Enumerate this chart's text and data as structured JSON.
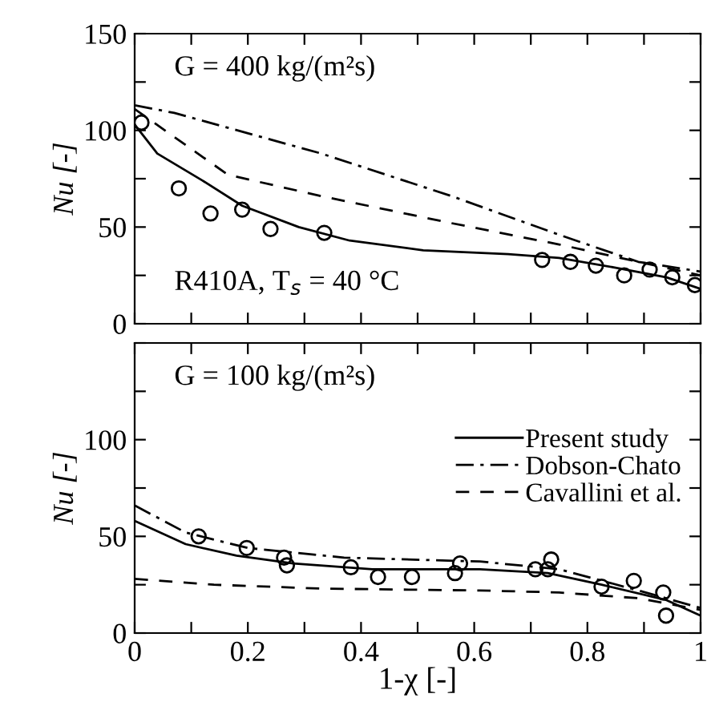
{
  "chart_data": [
    {
      "type": "line",
      "ylabel": "Nu [-]",
      "annotations": [
        "G = 400 kg/(m²s)",
        "R410A, T$_{s}$ = 40 °C"
      ],
      "xlim": [
        0,
        1
      ],
      "xticks": [
        0,
        {
          "value": 0.1,
          "label": null
        },
        0.2,
        {
          "value": 0.3,
          "label": null
        },
        0.4,
        {
          "value": 0.5,
          "label": null
        },
        0.6,
        {
          "value": 0.7,
          "label": null
        },
        0.8,
        {
          "value": 0.9,
          "label": null
        },
        1
      ],
      "ylim": [
        0,
        150
      ],
      "yticks": [
        0,
        {
          "value": 25,
          "label": null
        },
        50,
        {
          "value": 75,
          "label": null
        },
        100,
        {
          "value": 125,
          "label": null
        },
        150
      ],
      "tick_labels": "y",
      "grid": false,
      "legend": false,
      "series": [
        {
          "type": "scatter",
          "marker": "circle",
          "color": "#000000",
          "x": [
            0.012,
            0.078,
            0.134,
            0.19,
            0.24,
            0.335,
            0.72,
            0.77,
            0.815,
            0.865,
            0.91,
            0.95,
            0.99
          ],
          "values": [
            104,
            70,
            57,
            59,
            49,
            47,
            33,
            32,
            30,
            25,
            28,
            24,
            20
          ]
        },
        {
          "line_style": "solid",
          "color": "#000000",
          "x": [
            0,
            0.04,
            0.12,
            0.19,
            0.29,
            0.38,
            0.51,
            0.66,
            0.75,
            0.85,
            0.94,
            1
          ],
          "values": [
            103,
            88,
            74,
            61,
            50,
            43,
            38,
            36,
            34,
            29,
            24,
            18
          ]
        },
        {
          "line_style": "dashdot",
          "color": "#000000",
          "x": [
            0,
            0.07,
            0.33,
            0.56,
            0.75,
            0.89,
            1
          ],
          "values": [
            113,
            109,
            88,
            66,
            46,
            32,
            27
          ]
        },
        {
          "line_style": "dashed",
          "color": "#000000",
          "x": [
            0,
            0.165,
            0.33,
            0.56,
            0.75,
            0.89,
            1
          ],
          "values": [
            111,
            77,
            66,
            52,
            41,
            32,
            25
          ]
        }
      ]
    },
    {
      "type": "line",
      "xlabel": "1-χ [-]",
      "ylabel": "Nu [-]",
      "annotations": [
        "G = 100 kg/(m²s)"
      ],
      "xlim": [
        0,
        1
      ],
      "xticks": [
        0,
        {
          "value": 0.1,
          "label": null
        },
        0.2,
        {
          "value": 0.3,
          "label": null
        },
        0.4,
        {
          "value": 0.5,
          "label": null
        },
        0.6,
        {
          "value": 0.7,
          "label": null
        },
        0.8,
        {
          "value": 0.9,
          "label": null
        },
        1
      ],
      "ylim": [
        0,
        150
      ],
      "yticks": [
        0,
        {
          "value": 25,
          "label": null
        },
        50,
        {
          "value": 75,
          "label": null
        },
        100,
        {
          "value": 125,
          "label": null
        },
        {
          "value": 150,
          "label": null
        }
      ],
      "grid": false,
      "legend": "top right",
      "series": [
        {
          "type": "scatter",
          "marker": "circle",
          "color": "#000000",
          "x": [
            0.113,
            0.198,
            0.264,
            0.269,
            0.382,
            0.43,
            0.49,
            0.566,
            0.575,
            0.708,
            0.73,
            0.736,
            0.825,
            0.882,
            0.934,
            0.939
          ],
          "values": [
            50,
            44,
            39,
            35,
            34,
            29,
            29,
            31,
            36,
            33,
            33,
            38,
            24,
            27,
            21,
            9
          ]
        },
        {
          "name": "Present study",
          "line_style": "solid",
          "color": "#000000",
          "x": [
            0,
            0.09,
            0.18,
            0.28,
            0.42,
            0.61,
            0.73,
            0.825,
            0.94,
            1
          ],
          "values": [
            58,
            46,
            40,
            36,
            33,
            33,
            31,
            25,
            17,
            9
          ]
        },
        {
          "name": "Dobson-Chato",
          "line_style": "dashdot",
          "color": "#000000",
          "x": [
            0,
            0.09,
            0.2,
            0.37,
            0.61,
            0.75,
            0.89,
            1
          ],
          "values": [
            66,
            52,
            44,
            39,
            37,
            33,
            22,
            13
          ]
        },
        {
          "name": "Cavallini et al.",
          "line_style": "dashed",
          "color": "#000000",
          "x": [
            0,
            0.14,
            0.33,
            0.61,
            0.75,
            0.89,
            1
          ],
          "values": [
            28,
            25,
            23,
            22,
            21,
            18,
            12
          ]
        }
      ]
    }
  ]
}
